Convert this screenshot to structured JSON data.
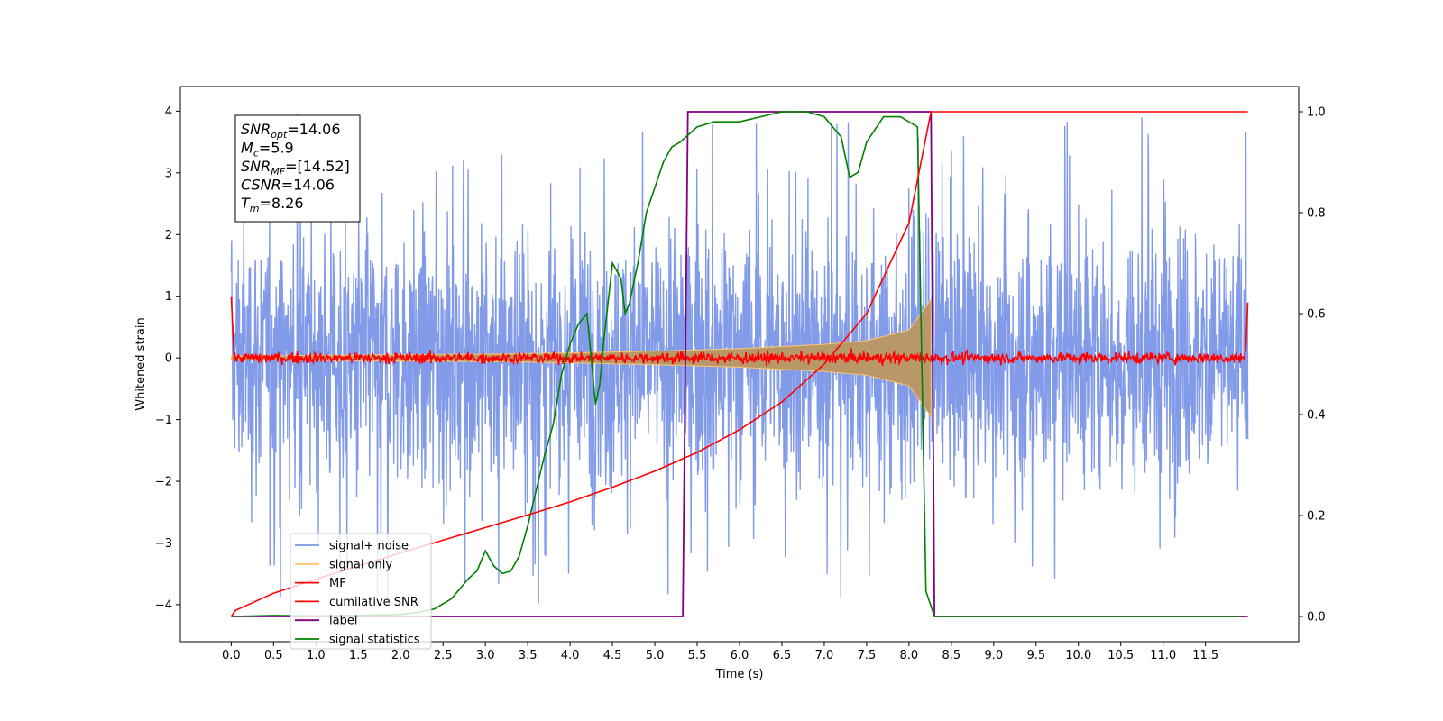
{
  "chart_data": {
    "type": "line",
    "xlabel": "Time (s)",
    "ylabel": "Whitened strain",
    "ylabel_right": "",
    "xlim": [
      -0.6,
      12.6
    ],
    "ylim": [
      -4.6,
      4.4
    ],
    "ylim_right": [
      -0.05,
      1.05
    ],
    "x_ticks": [
      "0.0",
      "0.5",
      "1.0",
      "1.5",
      "2.0",
      "2.5",
      "3.0",
      "3.5",
      "4.0",
      "4.5",
      "5.0",
      "5.5",
      "6.0",
      "6.5",
      "7.0",
      "7.5",
      "8.0",
      "8.5",
      "9.0",
      "9.5",
      "10.0",
      "10.5",
      "11.0",
      "11.5"
    ],
    "y_ticks": [
      "4",
      "3",
      "2",
      "1",
      "0",
      "−1",
      "−2",
      "−3",
      "−4"
    ],
    "y_ticks_right": [
      "1.0",
      "0.8",
      "0.6",
      "0.4",
      "0.2",
      "0.0"
    ],
    "grid": false,
    "legend_position": "bottom-left",
    "annotation": {
      "lines": [
        {
          "sym": "SNR",
          "sub": "opt",
          "rest": "=14.06"
        },
        {
          "sym": "M",
          "sub": "c",
          "rest": "=5.9"
        },
        {
          "sym": "SNR",
          "sub": "MF",
          "rest": "=[14.52]"
        },
        {
          "sym": "CSNR",
          "sub": "",
          "rest": "=14.06"
        },
        {
          "sym": "T",
          "sub": "m",
          "rest": "=8.26"
        }
      ]
    },
    "series": [
      {
        "name": "signal+ noise",
        "color": "#7B96E8",
        "axis": "left",
        "description": "noise band, approximately -2.5..2.6 with spikes to about ±4, spanning t=0 to 12"
      },
      {
        "name": "signal only",
        "color": "#FFC570",
        "axis": "left",
        "envelope": {
          "x": [
            0,
            1,
            2,
            3,
            4,
            5,
            6,
            7,
            7.5,
            8,
            8.26
          ],
          "amp": [
            0.03,
            0.04,
            0.05,
            0.06,
            0.08,
            0.11,
            0.15,
            0.22,
            0.28,
            0.45,
            0.95
          ]
        }
      },
      {
        "name": "MF",
        "color": "#FF0000",
        "axis": "left",
        "description": "noise near 0 (about ±0.15), edge spikes to about 1.0 at t=0 and 0.9 at t=12"
      },
      {
        "name": "cumilative SNR",
        "color": "#FF0000",
        "axis": "right",
        "x": [
          0,
          0.05,
          0.5,
          1,
          1.5,
          2,
          2.5,
          3,
          3.5,
          4,
          4.5,
          5,
          5.5,
          6,
          6.5,
          7,
          7.5,
          8,
          8.26,
          8.27,
          12
        ],
        "y": [
          0.0,
          0.012,
          0.046,
          0.074,
          0.1,
          0.126,
          0.151,
          0.176,
          0.201,
          0.227,
          0.256,
          0.288,
          0.325,
          0.37,
          0.425,
          0.5,
          0.6,
          0.78,
          1.0,
          1.0,
          1.0
        ]
      },
      {
        "name": "label",
        "color": "#800080",
        "axis": "right",
        "x": [
          0,
          5.33,
          5.39,
          8.26,
          8.3,
          12
        ],
        "y": [
          0,
          0,
          1,
          1,
          0,
          0
        ]
      },
      {
        "name": "signal statistics",
        "color": "#008000",
        "axis": "right",
        "x": [
          0,
          0.5,
          1,
          1.5,
          2,
          2.2,
          2.4,
          2.6,
          2.8,
          2.9,
          3.0,
          3.1,
          3.2,
          3.3,
          3.4,
          3.5,
          3.6,
          3.7,
          3.8,
          3.9,
          4.0,
          4.1,
          4.2,
          4.3,
          4.35,
          4.4,
          4.5,
          4.6,
          4.65,
          4.7,
          4.8,
          4.9,
          5.0,
          5.1,
          5.2,
          5.3,
          5.5,
          5.7,
          6.0,
          6.5,
          6.8,
          7.0,
          7.2,
          7.3,
          7.4,
          7.5,
          7.7,
          7.9,
          8.1,
          8.2,
          8.3,
          8.5,
          9,
          10,
          11,
          11.9
        ],
        "y": [
          0.0,
          0.002,
          0.001,
          0.002,
          0.004,
          0.008,
          0.015,
          0.035,
          0.075,
          0.09,
          0.13,
          0.1,
          0.085,
          0.09,
          0.12,
          0.18,
          0.25,
          0.32,
          0.38,
          0.48,
          0.54,
          0.58,
          0.6,
          0.42,
          0.46,
          0.55,
          0.7,
          0.67,
          0.6,
          0.62,
          0.7,
          0.8,
          0.85,
          0.9,
          0.93,
          0.94,
          0.97,
          0.98,
          0.98,
          1.0,
          1.0,
          0.99,
          0.95,
          0.87,
          0.88,
          0.94,
          0.99,
          0.99,
          0.97,
          0.05,
          0.0,
          0.0,
          0.0,
          0.0,
          0.0,
          0.0
        ]
      }
    ]
  }
}
